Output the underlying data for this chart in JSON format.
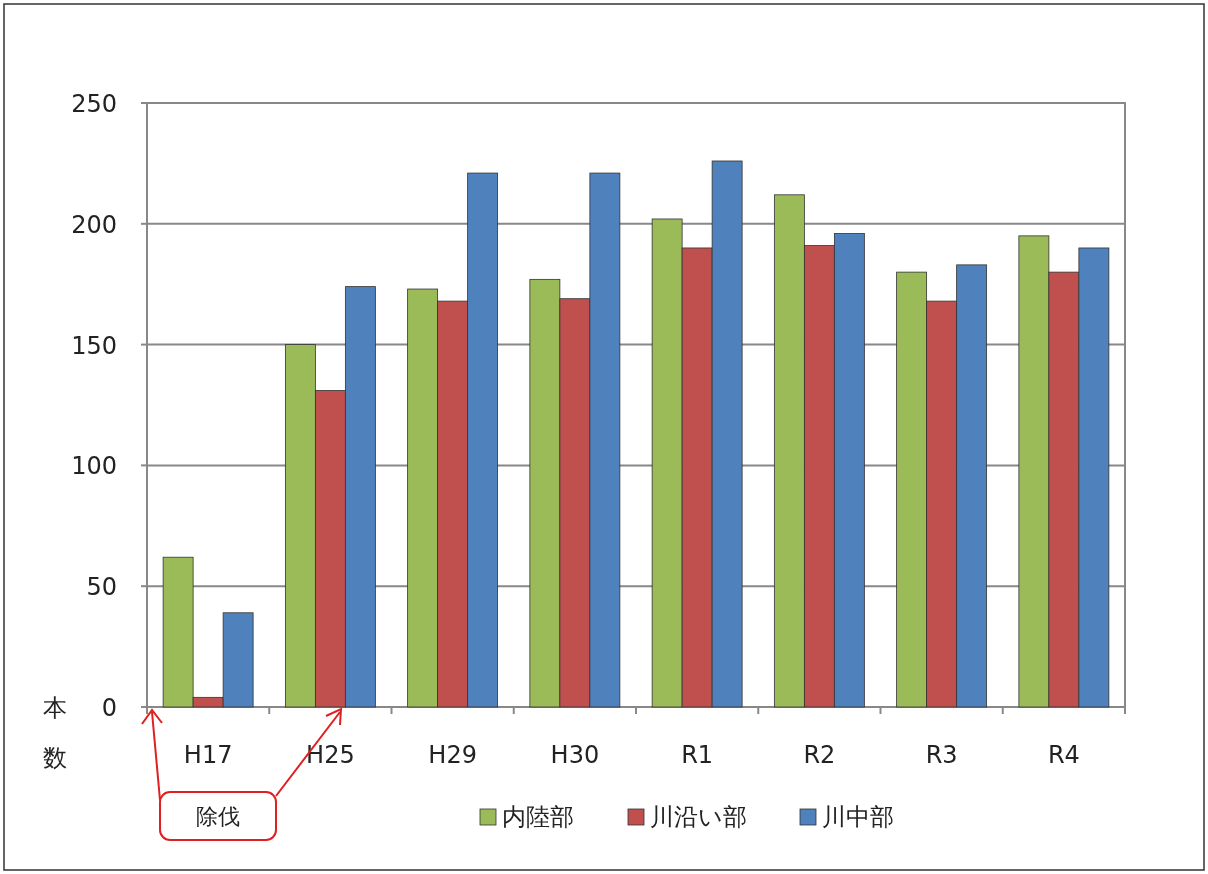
{
  "chart_data": {
    "type": "bar",
    "ylabel": "本数",
    "categories": [
      "H17",
      "H25",
      "H29",
      "H30",
      "R1",
      "R2",
      "R3",
      "R4"
    ],
    "series": [
      {
        "name": "内陸部",
        "color": "#9bbb59",
        "values": [
          62,
          150,
          173,
          177,
          202,
          212,
          180,
          195
        ]
      },
      {
        "name": "川沿い部",
        "color": "#c0504d",
        "values": [
          4,
          131,
          168,
          169,
          190,
          191,
          168,
          180
        ]
      },
      {
        "name": "川中部",
        "color": "#4f81bd",
        "values": [
          39,
          174,
          221,
          221,
          226,
          196,
          183,
          190
        ]
      }
    ],
    "ylim": [
      0,
      250
    ],
    "yticks": [
      0,
      50,
      100,
      150,
      200,
      250
    ],
    "grid": "y",
    "legend": "bottom",
    "annotations": [
      "除伐"
    ]
  }
}
